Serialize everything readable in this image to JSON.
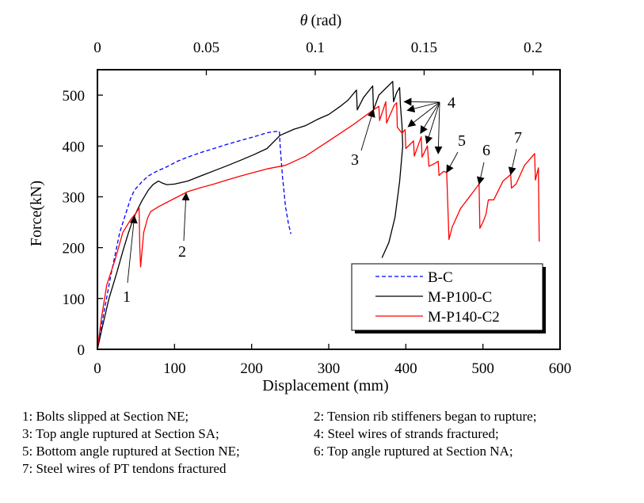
{
  "chart_data": {
    "type": "line",
    "xlabel": "Displacement (mm)",
    "ylabel": "Force(kN)",
    "top_xlabel": "θ (rad)",
    "top_xlabel_symbol": "θ",
    "top_xlabel_unit": "(rad)",
    "xlim": [
      0,
      600
    ],
    "ylim": [
      0,
      550
    ],
    "x_ticks": [
      0,
      100,
      200,
      300,
      400,
      500,
      600
    ],
    "y_ticks": [
      0,
      100,
      200,
      300,
      400,
      500
    ],
    "top_x_ticks": [
      "0",
      "0.05",
      "0.1",
      "0.15",
      "0.2"
    ],
    "top_x_tick_values": [
      0,
      0.05,
      0.1,
      0.15,
      0.2
    ],
    "top_xlim": [
      0,
      0.2124
    ],
    "grid": false,
    "legend_position": "bottom-right",
    "series": [
      {
        "name": "B-C",
        "color": "#0000ff",
        "style": "dashed",
        "x": [
          0,
          8,
          18,
          29,
          43,
          48,
          58,
          66,
          78,
          90,
          104,
          117,
          134,
          151,
          168,
          186,
          203,
          220,
          228,
          236,
          237,
          240,
          244,
          248,
          251
        ],
        "y": [
          0,
          70,
          150,
          230,
          297,
          313,
          330,
          341,
          351,
          359,
          370,
          378,
          387,
          395,
          403,
          411,
          418,
          426,
          428,
          429,
          400,
          340,
          280,
          245,
          227
        ]
      },
      {
        "name": "M-P100-C",
        "color": "#000000",
        "style": "solid",
        "x": [
          0,
          5,
          15,
          25,
          33,
          40,
          46,
          52,
          58,
          66,
          72,
          79,
          84,
          90,
          100,
          117,
          134,
          151,
          168,
          186,
          203,
          220,
          237,
          255,
          270,
          285,
          300,
          315,
          325,
          336,
          337,
          345,
          357,
          358,
          365,
          375,
          383,
          384,
          388,
          392,
          393,
          395,
          396,
          392,
          386,
          378,
          369
        ],
        "y": [
          0,
          35,
          100,
          150,
          193,
          228,
          255,
          275,
          293,
          313,
          324,
          331,
          327,
          324,
          325,
          331,
          341,
          351,
          361,
          372,
          383,
          395,
          421,
          433,
          440,
          452,
          462,
          478,
          490,
          510,
          471,
          495,
          518,
          471,
          500,
          515,
          527,
          487,
          505,
          515,
          480,
          440,
          400,
          330,
          260,
          210,
          180
        ]
      },
      {
        "name": "M-P140-C2",
        "color": "#ff0000",
        "style": "solid",
        "x": [
          0,
          5,
          12,
          23,
          33,
          43,
          50,
          54,
          55,
          56,
          60,
          65,
          69,
          80,
          90,
          104,
          117,
          134,
          151,
          168,
          186,
          203,
          220,
          244,
          270,
          300,
          330,
          358,
          365,
          366,
          374,
          375,
          385,
          388,
          389,
          395,
          399,
          400,
          410,
          411,
          420,
          421,
          428,
          430,
          437,
          442,
          443,
          449,
          453,
          456,
          460,
          471,
          480,
          489,
          495,
          496,
          500,
          504,
          507,
          514,
          526,
          536,
          537,
          543,
          554,
          567,
          568,
          572,
          573
        ],
        "y": [
          0,
          60,
          126,
          177,
          230,
          255,
          268,
          278,
          200,
          162,
          230,
          258,
          271,
          281,
          289,
          300,
          310,
          318,
          325,
          333,
          341,
          348,
          355,
          362,
          380,
          410,
          440,
          471,
          478,
          450,
          487,
          445,
          480,
          485,
          437,
          425,
          432,
          395,
          410,
          380,
          418,
          378,
          400,
          360,
          365,
          370,
          342,
          350,
          348,
          216,
          240,
          277,
          295,
          313,
          325,
          238,
          250,
          266,
          294,
          294,
          331,
          344,
          317,
          325,
          362,
          385,
          333,
          357,
          212
        ]
      }
    ],
    "annotations": [
      {
        "label": "1",
        "x": 48,
        "y": 262,
        "description": "Bolts slipped at Section NE"
      },
      {
        "label": "2",
        "x": 115,
        "y": 307,
        "description": "Tension rib stiffeners began to rupture"
      },
      {
        "label": "3",
        "x": 358,
        "y": 471,
        "description": "Top angle ruptured at Section SA"
      },
      {
        "label": "4",
        "x": [
          398,
          402,
          403,
          419,
          427,
          442
        ],
        "y": [
          487,
          470,
          438,
          425,
          405,
          385
        ],
        "description": "Steel wires of strands fractured"
      },
      {
        "label": "5",
        "x": 453,
        "y": 348,
        "description": "Bottom angle ruptured at Section NE"
      },
      {
        "label": "6",
        "x": 495,
        "y": 325,
        "description": "Top angle ruptured at Section NA"
      },
      {
        "label": "7",
        "x": 536,
        "y": 344,
        "description": "Steel wires of PT tendons fractured"
      }
    ]
  },
  "notes": [
    [
      "1: Bolts slipped at Section NE;",
      "2: Tension rib stiffeners began to rupture;"
    ],
    [
      "3: Top angle ruptured at Section SA;",
      "4: Steel wires of strands fractured;"
    ],
    [
      "5: Bottom angle ruptured at Section NE;",
      "6: Top angle ruptured at Section NA;"
    ],
    [
      "7: Steel wires of PT tendons fractured",
      ""
    ]
  ]
}
